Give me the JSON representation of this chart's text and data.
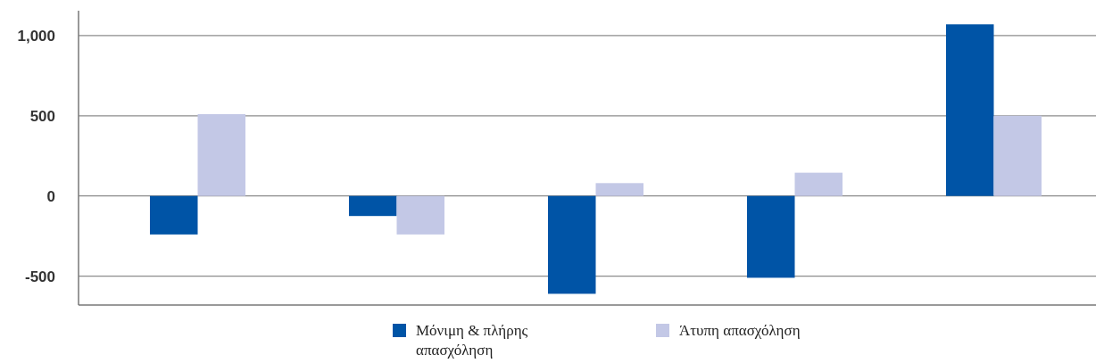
{
  "chart_data": {
    "type": "bar",
    "categories": [
      null,
      null,
      null,
      null,
      null
    ],
    "series": [
      {
        "name": "Μόνιμη & πλήρης απασχόληση",
        "color": "#0054a6",
        "values": [
          -240,
          -125,
          -610,
          -510,
          1070
        ]
      },
      {
        "name": "Άτυπη απασχόληση",
        "color": "#c3c8e6",
        "values": [
          510,
          -240,
          80,
          145,
          500
        ]
      }
    ],
    "ylim": [
      -680,
      1155
    ],
    "yticks": [
      {
        "value": -500,
        "label": "-500"
      },
      {
        "value": 0,
        "label": "0"
      },
      {
        "value": 500,
        "label": "500"
      },
      {
        "value": 1000,
        "label": "1,000"
      }
    ],
    "grid": "y",
    "legend": "bottom"
  }
}
